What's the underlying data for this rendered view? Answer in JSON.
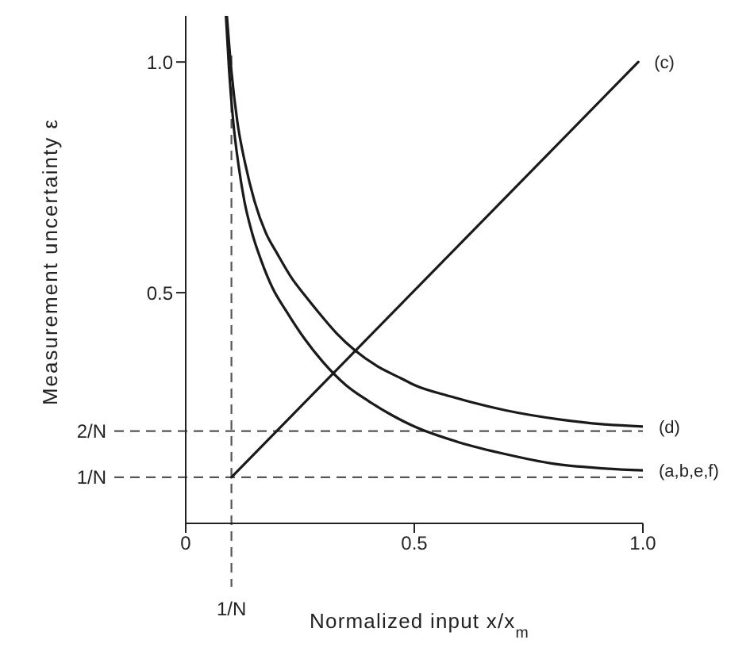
{
  "chart_data": {
    "type": "line",
    "xlabel": "Normalized input x/x$_{m}$",
    "ylabel": "Measurement uncertainty ε",
    "xlim": [
      0,
      1.0
    ],
    "ylim": [
      0,
      1.1
    ],
    "xticks": [
      0,
      0.5,
      {
        "value": 1.0,
        "label": "1.0"
      }
    ],
    "yticks": [
      0.5,
      {
        "value": 1.0,
        "label": "1.0"
      }
    ],
    "series": [
      {
        "name": "(a,b,e,f)",
        "color": "#1a1a1a",
        "x": [
          0.088,
          0.095,
          0.104,
          0.115,
          0.128,
          0.145,
          0.165,
          0.19,
          0.22,
          0.26,
          0.3,
          0.35,
          0.4,
          0.45,
          0.5,
          0.6,
          0.7,
          0.8,
          0.9,
          1.0
        ],
        "values": [
          1.1,
          0.98,
          0.87,
          0.78,
          0.7,
          0.63,
          0.57,
          0.51,
          0.46,
          0.4,
          0.35,
          0.3,
          0.265,
          0.235,
          0.21,
          0.175,
          0.15,
          0.13,
          0.12,
          0.115
        ]
      },
      {
        "name": "(d)",
        "color": "#1a1a1a",
        "x": [
          0.09,
          0.1,
          0.113,
          0.13,
          0.15,
          0.175,
          0.2,
          0.233,
          0.26,
          0.29,
          0.33,
          0.37,
          0.42,
          0.47,
          0.5,
          0.58,
          0.7,
          0.82,
          0.91,
          1.0
        ],
        "values": [
          1.1,
          0.98,
          0.87,
          0.78,
          0.7,
          0.63,
          0.585,
          0.53,
          0.495,
          0.458,
          0.412,
          0.375,
          0.34,
          0.315,
          0.3,
          0.275,
          0.245,
          0.225,
          0.215,
          0.21
        ]
      },
      {
        "name": "(c)",
        "color": "#1a1a1a",
        "x": [
          0.1,
          0.99
        ],
        "values": [
          0.1,
          1.0
        ]
      }
    ],
    "ref_lines": [
      {
        "axis": "x",
        "value": 0.1,
        "label": "1/N",
        "line_style": "dashed",
        "color": "#555555"
      },
      {
        "axis": "y",
        "value": 0.1,
        "label": "1/N",
        "line_style": "dashed",
        "color": "#555555"
      },
      {
        "axis": "y",
        "value": 0.2,
        "label": "2/N",
        "line_style": "dashed",
        "color": "#555555"
      }
    ],
    "line_style": "solid"
  }
}
